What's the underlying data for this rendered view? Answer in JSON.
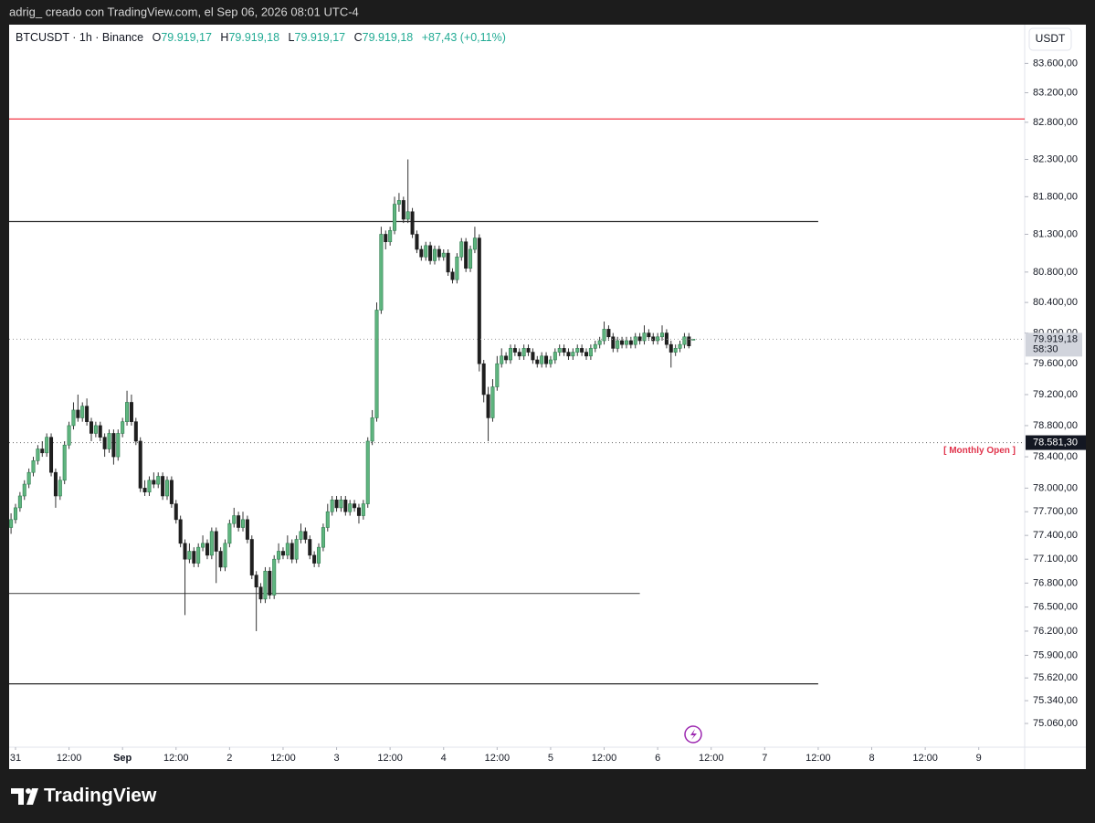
{
  "header": "adrig_ creado con TradingView.com, el Sep 06, 2026 08:01 UTC-4",
  "footer": "TradingView",
  "chart_data": {
    "type": "candlestick",
    "legend": {
      "symbol": "BTCUSDT · 1h · Binance",
      "fields": [
        {
          "label": "O",
          "value": "79.919,17"
        },
        {
          "label": "H",
          "value": "79.919,18"
        },
        {
          "label": "L",
          "value": "79.919,17"
        },
        {
          "label": "C",
          "value": "79.919,18"
        }
      ],
      "change": "+87,43 (+0,11%)"
    },
    "currency": "USDT",
    "log_scale": true,
    "grid": false,
    "up_color": "#5fb57f",
    "down_color": "#1f1f1f",
    "wick_color": "#333333",
    "ylim": [
      74770,
      84130
    ],
    "yticks": [
      {
        "value": 83600,
        "label": "83.600,00"
      },
      {
        "value": 83200,
        "label": "83.200,00"
      },
      {
        "value": 82800,
        "label": "82.800,00"
      },
      {
        "value": 82300,
        "label": "82.300,00"
      },
      {
        "value": 81800,
        "label": "81.800,00"
      },
      {
        "value": 81300,
        "label": "81.300,00"
      },
      {
        "value": 80800,
        "label": "80.800,00"
      },
      {
        "value": 80400,
        "label": "80.400,00"
      },
      {
        "value": 80000,
        "label": "80.000,00"
      },
      {
        "value": 79600,
        "label": "79.600,00"
      },
      {
        "value": 79200,
        "label": "79.200,00"
      },
      {
        "value": 78800,
        "label": "78.800,00"
      },
      {
        "value": 78400,
        "label": "78.400,00"
      },
      {
        "value": 78000,
        "label": "78.000,00"
      },
      {
        "value": 77700,
        "label": "77.700,00"
      },
      {
        "value": 77400,
        "label": "77.400,00"
      },
      {
        "value": 77100,
        "label": "77.100,00"
      },
      {
        "value": 76800,
        "label": "76.800,00"
      },
      {
        "value": 76500,
        "label": "76.500,00"
      },
      {
        "value": 76200,
        "label": "76.200,00"
      },
      {
        "value": 75900,
        "label": "75.900,00"
      },
      {
        "value": 75620,
        "label": "75.620,00"
      },
      {
        "value": 75340,
        "label": "75.340,00"
      },
      {
        "value": 75060,
        "label": "75.060,00"
      }
    ],
    "xlim": [
      -1.43,
      226.3
    ],
    "xticks": [
      {
        "value": 0,
        "label": "31"
      },
      {
        "value": 12,
        "label": "12:00"
      },
      {
        "value": 24,
        "label": "Sep"
      },
      {
        "value": 36,
        "label": "12:00"
      },
      {
        "value": 48,
        "label": "2"
      },
      {
        "value": 60,
        "label": "12:00"
      },
      {
        "value": 72,
        "label": "3"
      },
      {
        "value": 84,
        "label": "12:00"
      },
      {
        "value": 96,
        "label": "4"
      },
      {
        "value": 108,
        "label": "12:00"
      },
      {
        "value": 120,
        "label": "5"
      },
      {
        "value": 132,
        "label": "12:00"
      },
      {
        "value": 144,
        "label": "6"
      },
      {
        "value": 156,
        "label": "12:00"
      },
      {
        "value": 168,
        "label": "7"
      },
      {
        "value": 180,
        "label": "12:00"
      },
      {
        "value": 192,
        "label": "8"
      },
      {
        "value": 204,
        "label": "12:00"
      },
      {
        "value": 216,
        "label": "9"
      }
    ],
    "x": [
      -1,
      0,
      1,
      2,
      3,
      4,
      5,
      6,
      7,
      8,
      9,
      10,
      11,
      12,
      13,
      14,
      15,
      16,
      17,
      18,
      19,
      20,
      21,
      22,
      23,
      24,
      25,
      26,
      27,
      28,
      29,
      30,
      31,
      32,
      33,
      34,
      35,
      36,
      37,
      38,
      39,
      40,
      41,
      42,
      43,
      44,
      45,
      46,
      47,
      48,
      49,
      50,
      51,
      52,
      53,
      54,
      55,
      56,
      57,
      58,
      59,
      60,
      61,
      62,
      63,
      64,
      65,
      66,
      67,
      68,
      69,
      70,
      71,
      72,
      73,
      74,
      75,
      76,
      77,
      78,
      79,
      80,
      81,
      82,
      83,
      84,
      85,
      86,
      87,
      88,
      89,
      90,
      91,
      92,
      93,
      94,
      95,
      96,
      97,
      98,
      99,
      100,
      101,
      102,
      103,
      104,
      105,
      106,
      107,
      108,
      109,
      110,
      111,
      112,
      113,
      114,
      115,
      116,
      117,
      118,
      119,
      120,
      121,
      122,
      123,
      124,
      125,
      126,
      127,
      128,
      129,
      130,
      131,
      132,
      133,
      134,
      135,
      136,
      137,
      138,
      139,
      140,
      141,
      142,
      143,
      144,
      145,
      146,
      147,
      148,
      149,
      150,
      151,
      152
    ],
    "ohlc": [
      [
        77500,
        77680,
        77420,
        77600
      ],
      [
        77600,
        77800,
        77550,
        77750
      ],
      [
        77750,
        77950,
        77700,
        77900
      ],
      [
        77900,
        78100,
        77850,
        78050
      ],
      [
        78050,
        78250,
        78000,
        78200
      ],
      [
        78200,
        78400,
        78150,
        78350
      ],
      [
        78350,
        78550,
        78300,
        78500
      ],
      [
        78500,
        78600,
        78400,
        78450
      ],
      [
        78450,
        78700,
        78400,
        78650
      ],
      [
        78650,
        78700,
        78150,
        78200
      ],
      [
        78200,
        78250,
        77750,
        77900
      ],
      [
        77900,
        78150,
        77850,
        78100
      ],
      [
        78100,
        78600,
        78050,
        78550
      ],
      [
        78550,
        78850,
        78500,
        78800
      ],
      [
        78800,
        79100,
        78750,
        79000
      ],
      [
        79000,
        79200,
        78850,
        78900
      ],
      [
        78900,
        79100,
        78850,
        79050
      ],
      [
        79050,
        79150,
        78800,
        78850
      ],
      [
        78850,
        78900,
        78600,
        78700
      ],
      [
        78700,
        78850,
        78650,
        78800
      ],
      [
        78800,
        78850,
        78600,
        78650
      ],
      [
        78650,
        78700,
        78400,
        78500
      ],
      [
        78500,
        78750,
        78450,
        78700
      ],
      [
        78700,
        78750,
        78300,
        78400
      ],
      [
        78400,
        78750,
        78350,
        78700
      ],
      [
        78700,
        78900,
        78650,
        78850
      ],
      [
        78850,
        79250,
        78800,
        79100
      ],
      [
        79100,
        79200,
        78800,
        78850
      ],
      [
        78850,
        78900,
        78550,
        78600
      ],
      [
        78600,
        78650,
        77950,
        78000
      ],
      [
        78000,
        78100,
        77900,
        77950
      ],
      [
        77950,
        78150,
        77900,
        78100
      ],
      [
        78100,
        78200,
        78000,
        78050
      ],
      [
        78050,
        78200,
        78000,
        78150
      ],
      [
        78150,
        78200,
        77850,
        77900
      ],
      [
        77900,
        78150,
        77850,
        78100
      ],
      [
        78100,
        78150,
        77750,
        77800
      ],
      [
        77800,
        77850,
        77550,
        77600
      ],
      [
        77600,
        77650,
        77250,
        77300
      ],
      [
        77300,
        77350,
        76400,
        77100
      ],
      [
        77100,
        77300,
        77050,
        77200
      ],
      [
        77200,
        77250,
        77000,
        77050
      ],
      [
        77050,
        77300,
        77000,
        77250
      ],
      [
        77250,
        77400,
        77200,
        77300
      ],
      [
        77300,
        77350,
        77100,
        77150
      ],
      [
        77150,
        77500,
        77100,
        77450
      ],
      [
        77450,
        77500,
        76800,
        77200
      ],
      [
        77200,
        77250,
        76950,
        77000
      ],
      [
        77000,
        77350,
        76950,
        77300
      ],
      [
        77300,
        77600,
        77250,
        77550
      ],
      [
        77550,
        77750,
        77500,
        77650
      ],
      [
        77650,
        77700,
        77450,
        77500
      ],
      [
        77500,
        77700,
        77450,
        77600
      ],
      [
        77600,
        77650,
        77300,
        77350
      ],
      [
        77350,
        77400,
        76850,
        76900
      ],
      [
        76900,
        76950,
        76200,
        76750
      ],
      [
        76750,
        76800,
        76550,
        76600
      ],
      [
        76600,
        77000,
        76550,
        76950
      ],
      [
        76950,
        77000,
        76600,
        76650
      ],
      [
        76650,
        77150,
        76600,
        77100
      ],
      [
        77100,
        77300,
        77050,
        77200
      ],
      [
        77200,
        77250,
        77100,
        77150
      ],
      [
        77150,
        77400,
        77100,
        77300
      ],
      [
        77300,
        77350,
        77050,
        77100
      ],
      [
        77100,
        77400,
        77050,
        77350
      ],
      [
        77350,
        77550,
        77300,
        77450
      ],
      [
        77450,
        77500,
        77300,
        77350
      ],
      [
        77350,
        77400,
        77100,
        77150
      ],
      [
        77150,
        77200,
        77000,
        77050
      ],
      [
        77050,
        77300,
        77000,
        77250
      ],
      [
        77250,
        77550,
        77200,
        77500
      ],
      [
        77500,
        77800,
        77450,
        77700
      ],
      [
        77700,
        77900,
        77650,
        77850
      ],
      [
        77850,
        77900,
        77700,
        77750
      ],
      [
        77750,
        77900,
        77700,
        77850
      ],
      [
        77850,
        77900,
        77650,
        77700
      ],
      [
        77700,
        77850,
        77650,
        77800
      ],
      [
        77800,
        77850,
        77700,
        77750
      ],
      [
        77750,
        77800,
        77550,
        77650
      ],
      [
        77650,
        77850,
        77600,
        77800
      ],
      [
        77800,
        78650,
        77750,
        78600
      ],
      [
        78600,
        79000,
        78550,
        78900
      ],
      [
        78900,
        80400,
        78850,
        80300
      ],
      [
        80300,
        81400,
        80250,
        81300
      ],
      [
        81300,
        81350,
        81100,
        81200
      ],
      [
        81200,
        81400,
        81150,
        81350
      ],
      [
        81350,
        81800,
        81300,
        81700
      ],
      [
        81700,
        81850,
        81600,
        81750
      ],
      [
        81750,
        81800,
        81450,
        81500
      ],
      [
        81500,
        82300,
        81450,
        81600
      ],
      [
        81600,
        81650,
        81250,
        81300
      ],
      [
        81300,
        81350,
        81050,
        81100
      ],
      [
        81100,
        81150,
        80950,
        81000
      ],
      [
        81000,
        81200,
        80950,
        81150
      ],
      [
        81150,
        81200,
        80900,
        80950
      ],
      [
        80950,
        81150,
        80900,
        81100
      ],
      [
        81100,
        81150,
        80950,
        81000
      ],
      [
        81000,
        81100,
        80950,
        81050
      ],
      [
        81050,
        81100,
        80750,
        80800
      ],
      [
        80800,
        80850,
        80650,
        80700
      ],
      [
        80700,
        81050,
        80650,
        81000
      ],
      [
        81000,
        81250,
        80950,
        81200
      ],
      [
        81200,
        81250,
        80800,
        80850
      ],
      [
        80850,
        81150,
        80800,
        81100
      ],
      [
        81100,
        81400,
        81050,
        81250
      ],
      [
        81250,
        81300,
        79500,
        79600
      ],
      [
        79600,
        79650,
        79100,
        79200
      ],
      [
        79200,
        79300,
        78600,
        78900
      ],
      [
        78900,
        79400,
        78850,
        79300
      ],
      [
        79300,
        79700,
        79250,
        79600
      ],
      [
        79600,
        79800,
        79550,
        79700
      ],
      [
        79700,
        79750,
        79600,
        79650
      ],
      [
        79650,
        79850,
        79600,
        79800
      ],
      [
        79800,
        79850,
        79700,
        79750
      ],
      [
        79750,
        79800,
        79650,
        79700
      ],
      [
        79700,
        79850,
        79650,
        79800
      ],
      [
        79800,
        79850,
        79700,
        79750
      ],
      [
        79750,
        79800,
        79600,
        79650
      ],
      [
        79650,
        79700,
        79550,
        79600
      ],
      [
        79600,
        79750,
        79550,
        79700
      ],
      [
        79700,
        79750,
        79550,
        79600
      ],
      [
        79600,
        79700,
        79550,
        79650
      ],
      [
        79650,
        79800,
        79600,
        79750
      ],
      [
        79750,
        79850,
        79700,
        79800
      ],
      [
        79800,
        79850,
        79700,
        79750
      ],
      [
        79750,
        79800,
        79650,
        79700
      ],
      [
        79700,
        79800,
        79650,
        79750
      ],
      [
        79750,
        79850,
        79700,
        79800
      ],
      [
        79800,
        79850,
        79700,
        79750
      ],
      [
        79750,
        79800,
        79650,
        79700
      ],
      [
        79700,
        79850,
        79650,
        79800
      ],
      [
        79800,
        79900,
        79750,
        79850
      ],
      [
        79850,
        79950,
        79800,
        79900
      ],
      [
        79900,
        80150,
        79850,
        80050
      ],
      [
        80050,
        80100,
        79900,
        79950
      ],
      [
        79950,
        80000,
        79750,
        79800
      ],
      [
        79800,
        79950,
        79750,
        79900
      ],
      [
        79900,
        79950,
        79800,
        79850
      ],
      [
        79850,
        79950,
        79800,
        79900
      ],
      [
        79900,
        79950,
        79800,
        79850
      ],
      [
        79850,
        80000,
        79800,
        79950
      ],
      [
        79950,
        80000,
        79850,
        79900
      ],
      [
        79900,
        80100,
        79850,
        80000
      ],
      [
        80000,
        80050,
        79900,
        79950
      ],
      [
        79950,
        80000,
        79850,
        79900
      ],
      [
        79900,
        80000,
        79850,
        79950
      ],
      [
        79950,
        80100,
        79900,
        80000
      ],
      [
        80000,
        80050,
        79800,
        79850
      ],
      [
        79850,
        79900,
        79550,
        79750
      ],
      [
        79750,
        79850,
        79700,
        79800
      ],
      [
        79800,
        79900,
        79750,
        79850
      ],
      [
        79850,
        80000,
        79800,
        79950
      ],
      [
        79950,
        80000,
        79800,
        79831.75
      ],
      [
        79919.17,
        79919.18,
        79919.17,
        79919.18
      ]
    ],
    "levels": [
      {
        "price": 82845,
        "color": "#f23645"
      },
      {
        "price": 81470,
        "x_end": 180,
        "color": "#333333"
      },
      {
        "price": 76670,
        "x_end": 140,
        "color": "#555555"
      },
      {
        "price": 75547,
        "x_end": 180,
        "color": "#111111"
      }
    ],
    "last_price": {
      "label": "79.919,18",
      "countdown": "58:30"
    },
    "monthly_open": {
      "value": 78581.3,
      "label": "78.581,30",
      "text": "[ Monthly Open ]",
      "color": "#e0334b"
    }
  }
}
